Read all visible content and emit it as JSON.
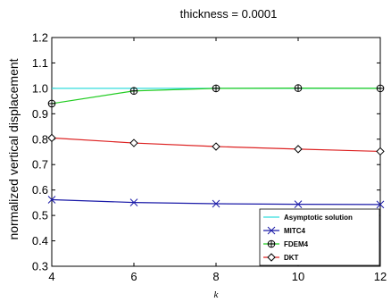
{
  "chart_data": {
    "type": "line",
    "title": "thickness = 0.0001",
    "xlabel": "k",
    "ylabel": "normalized vertical displacement",
    "xlim": [
      4,
      12
    ],
    "ylim": [
      0.3,
      1.2
    ],
    "x_ticks": [
      "4",
      "6",
      "8",
      "10",
      "12"
    ],
    "y_ticks": [
      "0.3",
      "0.4",
      "0.5",
      "0.6",
      "0.7",
      "0.8",
      "0.9",
      "1.0",
      "1.1",
      "1.2"
    ],
    "grid": false,
    "legend_position": "bottom-right",
    "series": [
      {
        "name": "Asymptotic solution",
        "color": "#33dddd",
        "marker": "none",
        "x": [
          4,
          6,
          8,
          10,
          12
        ],
        "y": [
          1.0,
          1.0,
          1.0,
          1.0,
          1.0
        ]
      },
      {
        "name": "MITC4",
        "color": "#1a1aa8",
        "marker": "x",
        "x": [
          4,
          6,
          8,
          10,
          12
        ],
        "y": [
          0.562,
          0.551,
          0.546,
          0.544,
          0.543
        ]
      },
      {
        "name": "FDEM4",
        "color": "#22cc22",
        "marker": "circle-plus",
        "x": [
          4,
          6,
          8,
          10,
          12
        ],
        "y": [
          0.94,
          0.99,
          1.0,
          1.001,
          1.0
        ]
      },
      {
        "name": "DKT",
        "color": "#dd2222",
        "marker": "diamond",
        "x": [
          4,
          6,
          8,
          10,
          12
        ],
        "y": [
          0.805,
          0.785,
          0.771,
          0.761,
          0.752
        ]
      }
    ]
  }
}
